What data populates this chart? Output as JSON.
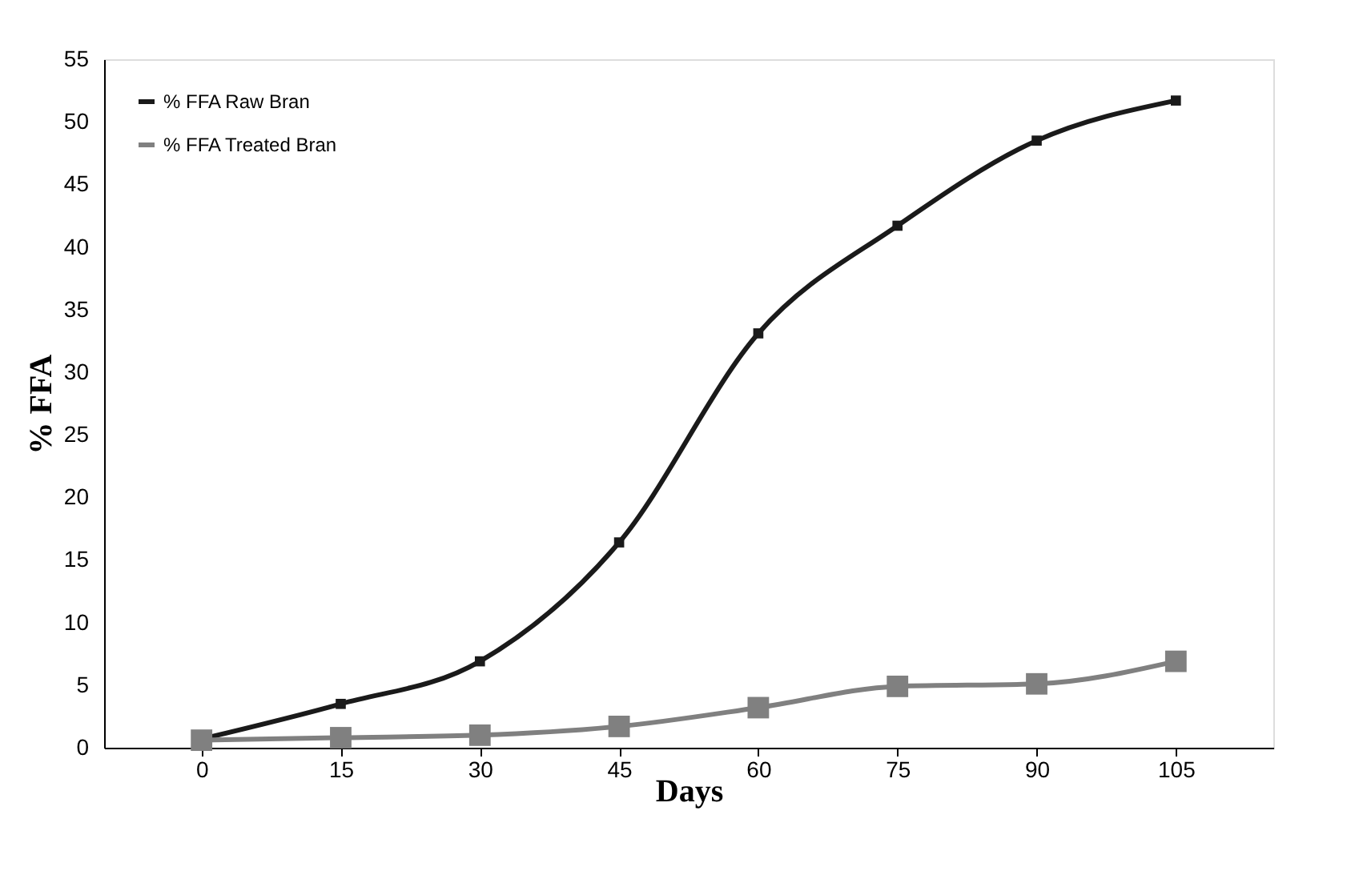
{
  "chart_data": {
    "type": "line",
    "xlabel": "Days",
    "ylabel": "% FFA",
    "categories": [
      "0",
      "15",
      "30",
      "45",
      "60",
      "75",
      "90",
      "105"
    ],
    "series": [
      {
        "name": "% FFA Raw Bran",
        "color": "#1a1a1a",
        "values": [
          0.7,
          3.5,
          6.9,
          16.4,
          33.1,
          41.7,
          48.5,
          51.7
        ]
      },
      {
        "name": "% FFA Treated Bran",
        "color": "#808080",
        "values": [
          0.6,
          0.8,
          1.0,
          1.7,
          3.2,
          4.9,
          5.1,
          6.9
        ]
      }
    ],
    "ylim": [
      0,
      55
    ],
    "yticks": [
      0,
      5,
      10,
      15,
      20,
      25,
      30,
      35,
      40,
      45,
      50,
      55
    ],
    "grid": false,
    "legend": "top left",
    "marker": "square",
    "line_style": "solid"
  }
}
